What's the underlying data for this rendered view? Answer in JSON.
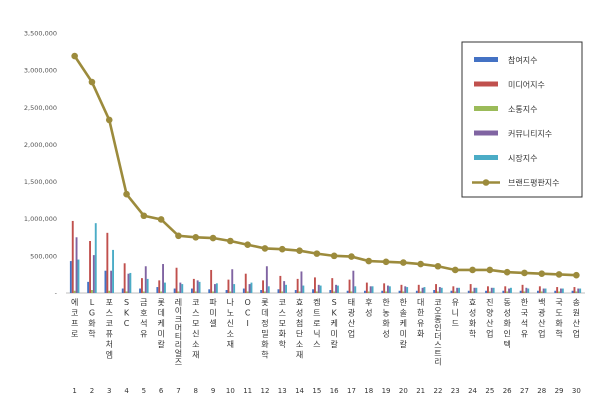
{
  "chart_data": {
    "type": "bar",
    "title": "",
    "xlabel": "",
    "ylabel": "",
    "ylim": [
      0,
      3500000
    ],
    "yticks": [
      "-",
      "500,000",
      "1,000,000",
      "1,500,000",
      "2,000,000",
      "2,500,000",
      "3,000,000",
      "3,500,000"
    ],
    "grid": false,
    "legend_position": "right",
    "categories": [
      "에코프로",
      "LG화학",
      "포스코퓨처엠",
      "SKC",
      "금호석유",
      "롯데케미칼",
      "레이크머티리얼즈",
      "코스모신소재",
      "파미셀",
      "나노신소재",
      "OCI",
      "롯데정밀화학",
      "코스모화학",
      "효성첨단소재",
      "켐트로닉스",
      "SK케미칼",
      "태광산업",
      "후성",
      "한농화성",
      "한솔케미칼",
      "대한유화",
      "코오롱인더스트리",
      "유니드",
      "효성화학",
      "진양산업",
      "동성화인텍",
      "한국석유",
      "백광산업",
      "국도화학",
      "송원산업"
    ],
    "category_numbers": [
      "1",
      "2",
      "3",
      "4",
      "5",
      "6",
      "7",
      "8",
      "9",
      "10",
      "11",
      "12",
      "13",
      "14",
      "15",
      "16",
      "17",
      "18",
      "19",
      "20",
      "21",
      "22",
      "23",
      "24",
      "25",
      "26",
      "27",
      "28",
      "29",
      "30"
    ],
    "series": [
      {
        "name": "참여지수",
        "type": "bar",
        "color": "#4472C4",
        "values": [
          430000,
          150000,
          300000,
          60000,
          60000,
          80000,
          60000,
          60000,
          50000,
          40000,
          60000,
          40000,
          50000,
          40000,
          50000,
          40000,
          30000,
          30000,
          30000,
          30000,
          30000,
          40000,
          30000,
          30000,
          30000,
          30000,
          30000,
          30000,
          30000,
          30000
        ]
      },
      {
        "name": "미디어지수",
        "type": "bar",
        "color": "#C0504D",
        "values": [
          970000,
          700000,
          810000,
          400000,
          200000,
          170000,
          340000,
          190000,
          310000,
          180000,
          260000,
          170000,
          230000,
          190000,
          210000,
          200000,
          180000,
          140000,
          130000,
          110000,
          110000,
          120000,
          90000,
          120000,
          90000,
          90000,
          110000,
          90000,
          80000,
          80000
        ]
      },
      {
        "name": "소통지수",
        "type": "bar",
        "color": "#9BBB59",
        "values": [
          30000,
          40000,
          30000,
          20000,
          20000,
          20000,
          20000,
          20000,
          20000,
          20000,
          20000,
          20000,
          20000,
          20000,
          20000,
          20000,
          20000,
          20000,
          20000,
          20000,
          20000,
          20000,
          20000,
          20000,
          20000,
          20000,
          20000,
          20000,
          20000,
          20000
        ]
      },
      {
        "name": "커뮤니티지수",
        "type": "bar",
        "color": "#8064A2",
        "values": [
          750000,
          510000,
          300000,
          260000,
          360000,
          390000,
          140000,
          170000,
          120000,
          320000,
          120000,
          360000,
          160000,
          290000,
          110000,
          110000,
          300000,
          90000,
          100000,
          90000,
          70000,
          80000,
          70000,
          70000,
          70000,
          60000,
          70000,
          60000,
          60000,
          60000
        ]
      },
      {
        "name": "시장지수",
        "type": "bar",
        "color": "#4BACC6",
        "values": [
          450000,
          940000,
          580000,
          270000,
          190000,
          140000,
          120000,
          150000,
          130000,
          120000,
          140000,
          90000,
          110000,
          100000,
          100000,
          100000,
          90000,
          90000,
          90000,
          80000,
          80000,
          70000,
          70000,
          70000,
          70000,
          70000,
          60000,
          60000,
          60000,
          60000
        ]
      },
      {
        "name": "브랜드평판지수",
        "type": "line",
        "color": "#9C8B3C",
        "values": [
          3190000,
          2840000,
          2330000,
          1330000,
          1040000,
          990000,
          770000,
          750000,
          740000,
          700000,
          650000,
          600000,
          590000,
          570000,
          530000,
          500000,
          490000,
          430000,
          420000,
          410000,
          390000,
          360000,
          310000,
          310000,
          310000,
          280000,
          270000,
          260000,
          250000,
          240000
        ]
      }
    ]
  }
}
